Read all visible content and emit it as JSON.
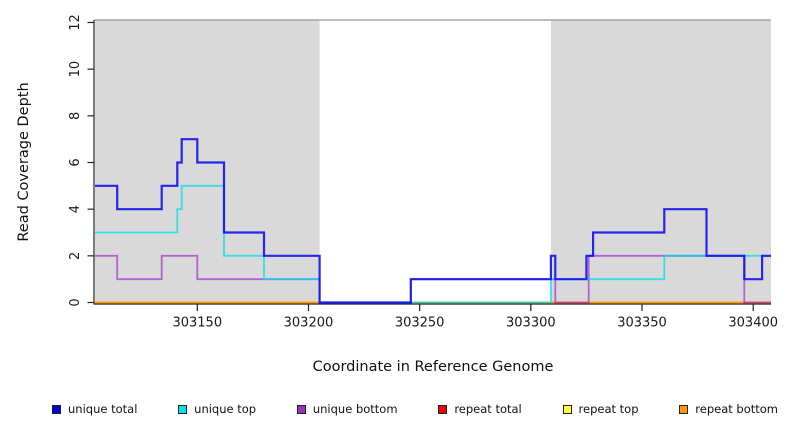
{
  "axes": {
    "y_label": "Read Coverage Depth",
    "x_label": "Coordinate in Reference Genome"
  },
  "chart_data": {
    "type": "step-line",
    "title": "",
    "xlabel": "Coordinate in Reference Genome",
    "ylabel": "Read Coverage Depth",
    "x_range": [
      303104,
      303408
    ],
    "y_range": [
      0,
      12
    ],
    "x_ticks": [
      303150,
      303200,
      303250,
      303300,
      303350,
      303400
    ],
    "y_ticks": [
      0,
      2,
      4,
      6,
      8,
      10,
      12
    ],
    "grid": false,
    "shade_color": "#d9d9d9",
    "shade_top_border_color": "#a6a6a6",
    "shaded_regions": [
      [
        303104,
        303205
      ],
      [
        303309,
        303408
      ]
    ],
    "series": [
      {
        "name": "repeat total",
        "color": "#dd0000",
        "opacity": 0.7,
        "width": 1.5,
        "segments": [
          [
            303104,
            303408,
            0
          ]
        ]
      },
      {
        "name": "repeat top",
        "color": "#ffff00",
        "opacity": 0.7,
        "width": 1.5,
        "segments": [
          [
            303104,
            303408,
            0
          ]
        ]
      },
      {
        "name": "repeat bottom",
        "color": "#ff9800",
        "opacity": 0.9,
        "width": 1.8,
        "segments": [
          [
            303104,
            303408,
            0
          ]
        ]
      },
      {
        "name": "unique bottom",
        "color": "#9400d3",
        "opacity": 0.55,
        "width": 1.8,
        "segments": [
          [
            303104,
            303114,
            2
          ],
          [
            303114,
            303134,
            1
          ],
          [
            303134,
            303150,
            2
          ],
          [
            303150,
            303205,
            1
          ],
          [
            303205,
            303246,
            0
          ],
          [
            303246,
            303311,
            1
          ],
          [
            303311,
            303326,
            0
          ],
          [
            303326,
            303396,
            2
          ],
          [
            303396,
            303408,
            0
          ]
        ]
      },
      {
        "name": "unique top",
        "color": "#00dfe8",
        "opacity": 0.75,
        "width": 1.8,
        "segments": [
          [
            303104,
            303141,
            3
          ],
          [
            303141,
            303143,
            4
          ],
          [
            303143,
            303162,
            5
          ],
          [
            303162,
            303180,
            2
          ],
          [
            303180,
            303205,
            1
          ],
          [
            303205,
            303309,
            0
          ],
          [
            303309,
            303360,
            1
          ],
          [
            303360,
            303408,
            2
          ]
        ]
      },
      {
        "name": "unique total",
        "color": "#1111ee",
        "opacity": 0.9,
        "width": 2.2,
        "segments": [
          [
            303104,
            303114,
            5
          ],
          [
            303114,
            303134,
            4
          ],
          [
            303134,
            303141,
            5
          ],
          [
            303141,
            303143,
            6
          ],
          [
            303143,
            303150,
            7
          ],
          [
            303150,
            303162,
            6
          ],
          [
            303162,
            303180,
            3
          ],
          [
            303180,
            303205,
            2
          ],
          [
            303205,
            303246,
            0
          ],
          [
            303246,
            303309,
            1
          ],
          [
            303309,
            303311,
            2
          ],
          [
            303311,
            303325,
            1
          ],
          [
            303325,
            303328,
            2
          ],
          [
            303328,
            303360,
            3
          ],
          [
            303360,
            303379,
            4
          ],
          [
            303379,
            303396,
            2
          ],
          [
            303396,
            303404,
            1
          ],
          [
            303404,
            303408,
            2
          ]
        ]
      }
    ],
    "legend": [
      {
        "label": "unique total",
        "color": "#0000dd"
      },
      {
        "label": "unique top",
        "color": "#00e5e5"
      },
      {
        "label": "unique bottom",
        "color": "#9933bb"
      },
      {
        "label": "repeat total",
        "color": "#ee0000"
      },
      {
        "label": "repeat top",
        "color": "#ffff33"
      },
      {
        "label": "repeat bottom",
        "color": "#ff9900"
      }
    ]
  }
}
